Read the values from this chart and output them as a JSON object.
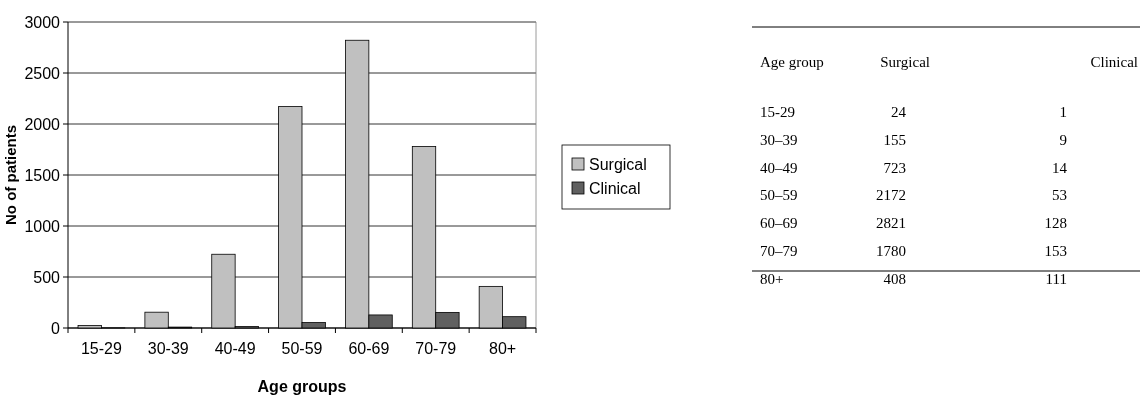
{
  "chart_data": [
    {
      "type": "bar",
      "xlabel": "Age groups",
      "ylabel": "No of patients",
      "categories": [
        "15-29",
        "30-39",
        "40-49",
        "50-59",
        "60-69",
        "70-79",
        "80+"
      ],
      "series": [
        {
          "name": "Surgical",
          "color": "#c0c0c0",
          "values": [
            24,
            155,
            723,
            2172,
            2821,
            1780,
            408
          ]
        },
        {
          "name": "Clinical",
          "color": "#606060",
          "values": [
            1,
            9,
            14,
            53,
            128,
            153,
            111
          ]
        }
      ],
      "ylim": [
        0,
        3000
      ],
      "yticks": [
        0,
        500,
        1000,
        1500,
        2000,
        2500,
        3000
      ],
      "grid": "y",
      "legend": "right"
    },
    {
      "type": "other",
      "xlabel": "Age group",
      "data_labels": true,
      "categories": [
        "15-29",
        "30–39",
        "40–49",
        "50–59",
        "60–69",
        "70–79",
        "80+"
      ],
      "series": [
        {
          "name": "Surgical",
          "values": [
            24,
            155,
            723,
            2172,
            2821,
            1780,
            408
          ]
        },
        {
          "name": "Clinical",
          "values": [
            1,
            9,
            14,
            53,
            128,
            153,
            111
          ]
        }
      ]
    }
  ]
}
